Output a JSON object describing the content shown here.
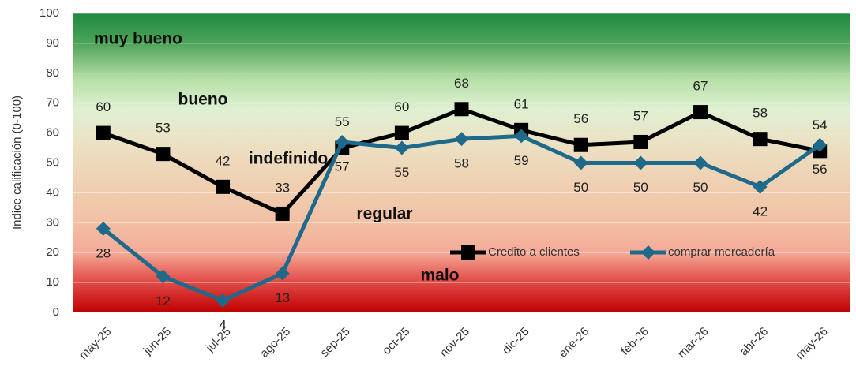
{
  "chart_data": {
    "type": "line",
    "y_label": "Indice calificación (0-100)",
    "categories": [
      "may-25",
      "jun-25",
      "jul-25",
      "ago-25",
      "sep-25",
      "oct-25",
      "nov-25",
      "dic-25",
      "ene-26",
      "feb-26",
      "mar-26",
      "abr-26",
      "may-26"
    ],
    "series": [
      {
        "name": "Credito a clientes",
        "color": "#000000",
        "marker": "square",
        "values": [
          60,
          53,
          42,
          33,
          55,
          60,
          68,
          61,
          56,
          57,
          67,
          58,
          54
        ]
      },
      {
        "name": "comprar mercadería",
        "color": "#1f6a8a",
        "marker": "diamond",
        "values": [
          28,
          12,
          4,
          13,
          57,
          55,
          58,
          59,
          50,
          50,
          50,
          42,
          56
        ]
      }
    ],
    "annotations": [
      "muy bueno",
      "bueno",
      "indefinido",
      "regular",
      "malo"
    ],
    "ylim": [
      0,
      100
    ],
    "yticks": [
      0,
      10,
      20,
      30,
      40,
      50,
      60,
      70,
      80,
      90,
      100
    ],
    "grid": true
  }
}
